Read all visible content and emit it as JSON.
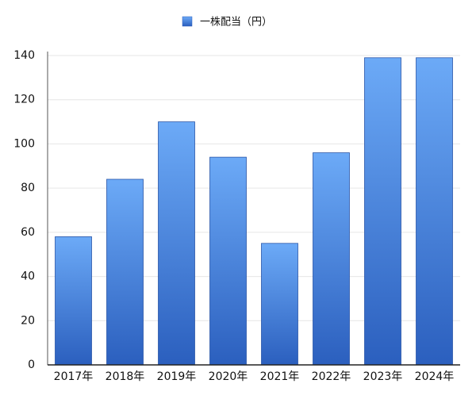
{
  "chart_data": {
    "type": "bar",
    "legend": "top",
    "series": [
      {
        "name": "一株配当（円）",
        "color": [
          "#6caaf7",
          "#2b5fbe"
        ],
        "values": [
          58,
          84,
          110,
          94,
          55,
          96,
          139,
          139
        ]
      }
    ],
    "categories": [
      "2017年",
      "2018年",
      "2019年",
      "2020年",
      "2021年",
      "2022年",
      "2023年",
      "2024年"
    ],
    "ylim": [
      0,
      140
    ],
    "yticks": [
      0,
      20,
      40,
      60,
      80,
      100,
      120,
      140
    ],
    "grid": true
  }
}
